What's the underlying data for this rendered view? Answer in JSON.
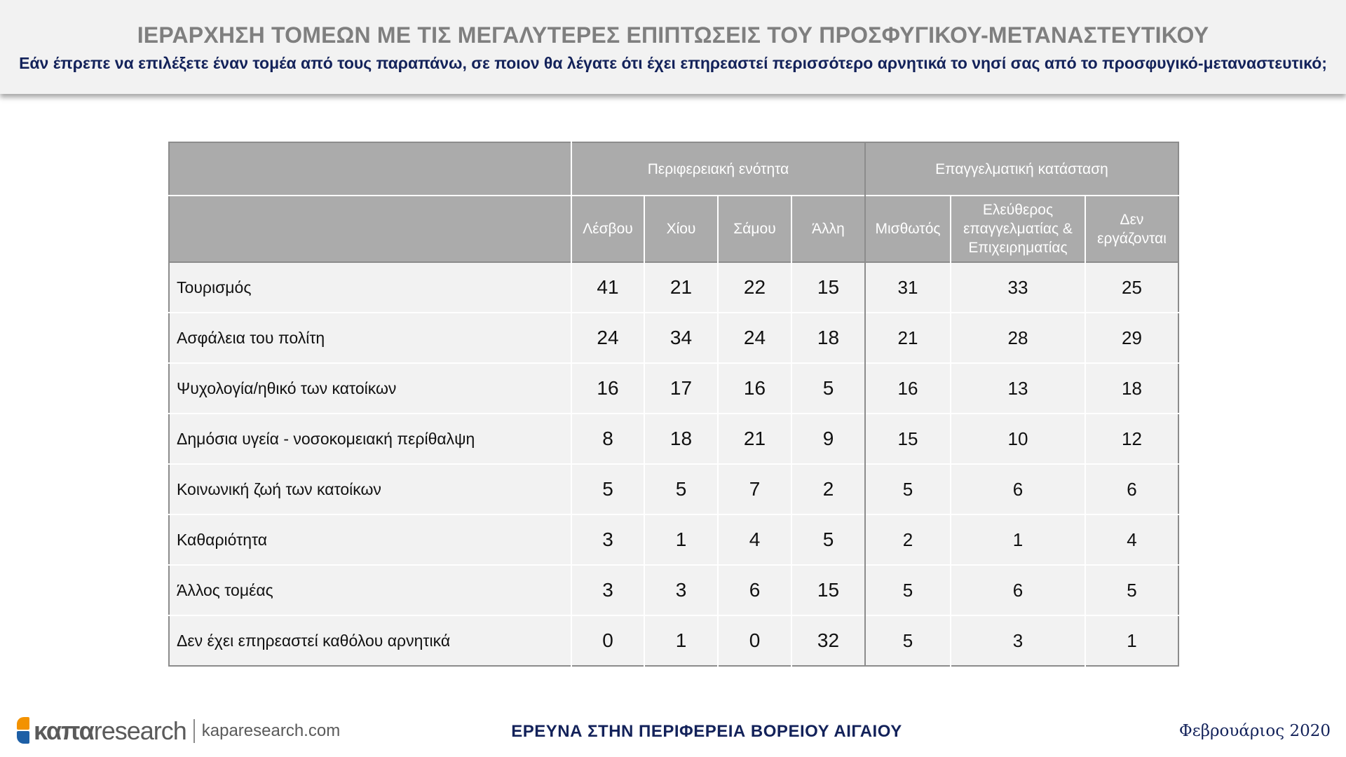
{
  "header": {
    "title": "ΙΕΡΑΡΧΗΣΗ ΤΟΜΕΩΝ ΜΕ ΤΙΣ ΜΕΓΑΛΥΤΕΡΕΣ ΕΠΙΠΤΩΣΕΙΣ ΤΟΥ ΠΡΟΣΦΥΓΙΚΟΥ-ΜΕΤΑΝΑΣΤΕΥΤΙΚΟΥ",
    "subtitle": "Εάν έπρεπε να επιλέξετε έναν τομέα από τους παραπάνω, σε ποιον θα λέγατε ότι έχει επηρεαστεί περισσότερο αρνητικά το νησί σας από το προσφυγικό-μεταναστευτικό;"
  },
  "table": {
    "groups": [
      "Περιφερειακή ενότητα",
      "Επαγγελματική κατάσταση"
    ],
    "columns": [
      "Λέσβου",
      "Χίου",
      "Σάμου",
      "Άλλη",
      "Μισθωτός",
      "Ελεύθερος επαγγελματίας & Επιχειρηματίας",
      "Δεν εργάζονται"
    ],
    "rows": [
      {
        "label": "Τουρισμός",
        "values": [
          "41",
          "21",
          "22",
          "15",
          "31",
          "33",
          "25"
        ]
      },
      {
        "label": "Ασφάλεια του πολίτη",
        "values": [
          "24",
          "34",
          "24",
          "18",
          "21",
          "28",
          "29"
        ]
      },
      {
        "label": "Ψυχολογία/ηθικό των κατοίκων",
        "values": [
          "16",
          "17",
          "16",
          "5",
          "16",
          "13",
          "18"
        ]
      },
      {
        "label": "Δημόσια υγεία - νοσοκομειακή περίθαλψη",
        "values": [
          "8",
          "18",
          "21",
          "9",
          "15",
          "10",
          "12"
        ]
      },
      {
        "label": "Κοινωνική ζωή των κατοίκων",
        "values": [
          "5",
          "5",
          "7",
          "2",
          "5",
          "6",
          "6"
        ]
      },
      {
        "label": "Καθαριότητα",
        "values": [
          "3",
          "1",
          "4",
          "5",
          "2",
          "1",
          "4"
        ]
      },
      {
        "label": "Άλλος τομέας",
        "values": [
          "3",
          "3",
          "6",
          "15",
          "5",
          "6",
          "5"
        ]
      },
      {
        "label": "Δεν έχει επηρεαστεί καθόλου αρνητικά",
        "values": [
          "0",
          "1",
          "0",
          "32",
          "5",
          "3",
          "1"
        ]
      }
    ]
  },
  "footer": {
    "logo_word1": "καπα",
    "logo_word2": "research",
    "website": "kaparesearch.com",
    "center": "ΕΡΕΥΝΑ ΣΤΗΝ ΠΕΡΙΦΕΡΕΙΑ ΒΟΡΕΙΟΥ ΑΙΓΑΙΟΥ",
    "date": "Φεβρουάριος 2020"
  },
  "colors": {
    "header_bg": "#f2f2f2",
    "title": "#7f7f7f",
    "subtitle": "#13225a",
    "table_header_bg": "#ababab",
    "table_cell_bg": "#f2f2f2",
    "logo_orange": "#f39200",
    "logo_blue": "#1d5fa6"
  }
}
